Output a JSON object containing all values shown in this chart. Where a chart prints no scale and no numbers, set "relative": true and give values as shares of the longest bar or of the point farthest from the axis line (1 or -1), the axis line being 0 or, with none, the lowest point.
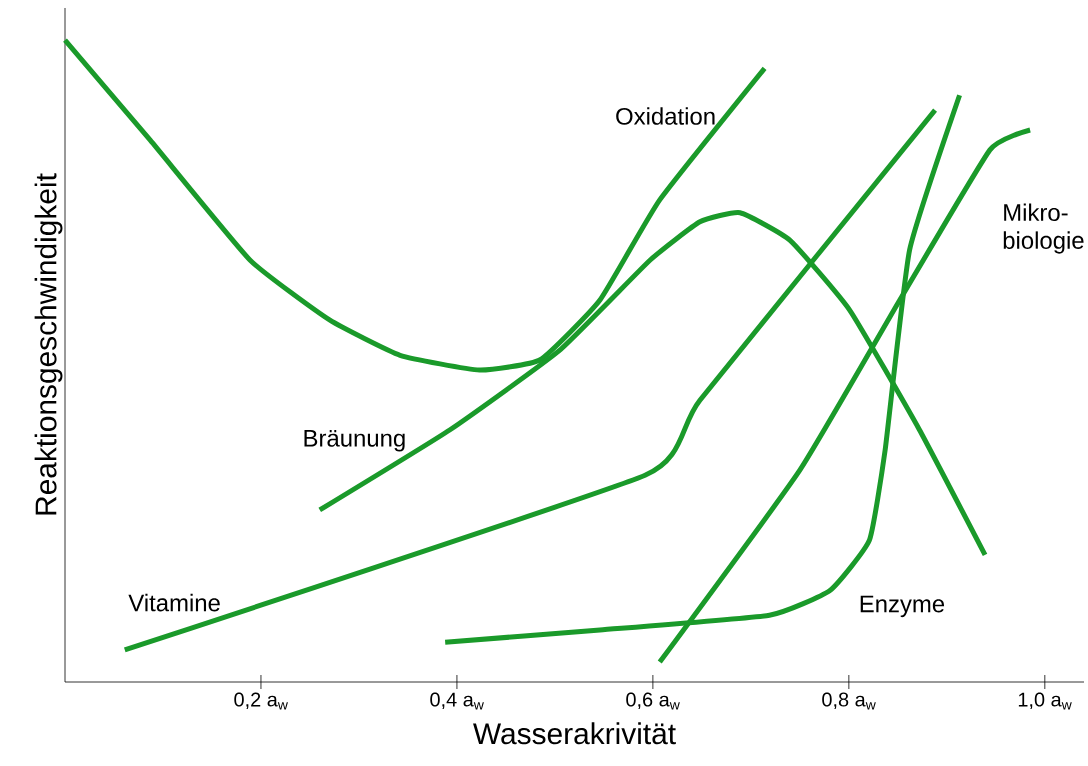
{
  "chart_data": {
    "type": "line",
    "relative": true,
    "xlabel": "Wasserakrivität",
    "ylabel": "Reaktionsgeschwindigkeit",
    "xlim": [
      0,
      1.04
    ],
    "xticks": [
      {
        "value": 0.2,
        "label": "0,2 a$_{w}$"
      },
      {
        "value": 0.4,
        "label": "0,4 a$_{w}$"
      },
      {
        "value": 0.6,
        "label": "0,6 a$_{w}$"
      },
      {
        "value": 0.8,
        "label": "0,8 a$_{w}$"
      },
      {
        "value": 1.0,
        "label": "1,0 a$_{w}$"
      }
    ],
    "grid": false,
    "legend": false,
    "marker": "none",
    "line_style": "solid",
    "series": [
      {
        "name": "Oxidation",
        "color": "#1a9a2a",
        "x": [
          0,
          0.087,
          0.189,
          0.27,
          0.342,
          0.423,
          0.485,
          0.546,
          0.607,
          0.714
        ],
        "values": [
          1.0,
          0.844,
          0.657,
          0.564,
          0.509,
          0.486,
          0.502,
          0.595,
          0.751,
          0.956
        ]
      },
      {
        "name": "Bräunung",
        "color": "#1a9a2a",
        "x": [
          0.26,
          0.393,
          0.505,
          0.597,
          0.648,
          0.689,
          0.74,
          0.801,
          0.872,
          0.939
        ],
        "values": [
          0.268,
          0.393,
          0.517,
          0.657,
          0.717,
          0.731,
          0.688,
          0.579,
          0.393,
          0.198
        ]
      },
      {
        "name": "Vitamine",
        "color": "#1a9a2a",
        "x": [
          0.061,
          0.592,
          0.648,
          0.888
        ],
        "values": [
          0.05,
          0.322,
          0.439,
          0.891
        ]
      },
      {
        "name": "Mikro-biologie",
        "color": "#1a9a2a",
        "x": [
          0.607,
          0.75,
          0.852,
          0.944,
          0.985
        ],
        "values": [
          0.031,
          0.33,
          0.595,
          0.829,
          0.86
        ]
      },
      {
        "name": "Enzyme",
        "color": "#1a9a2a",
        "x": [
          0.388,
          0.546,
          0.719,
          0.781,
          0.821,
          0.837,
          0.862,
          0.913
        ],
        "values": [
          0.062,
          0.081,
          0.104,
          0.143,
          0.221,
          0.361,
          0.673,
          0.914
        ]
      }
    ]
  }
}
